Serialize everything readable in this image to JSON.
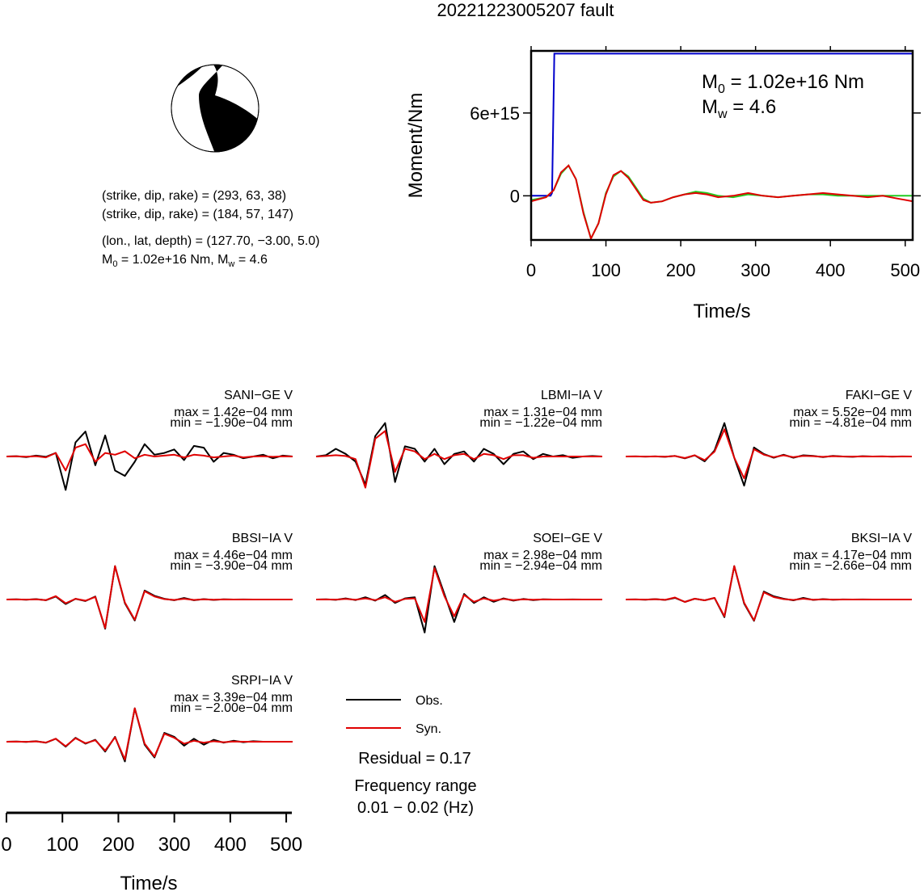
{
  "title": "20221223005207 fault",
  "beachball": {
    "planes": [
      "(strike, dip, rake) = (293, 63, 38)",
      "(strike, dip, rake) = (184, 57, 147)"
    ],
    "location": "(lon., lat, depth) = (127.70, −3.00, 5.0)",
    "moment_line": {
      "m": "M",
      "sub0": "0",
      "mid": " = 1.02e+16 Nm, M",
      "subw": "w",
      "end": " = 4.6"
    }
  },
  "moment_annotation": {
    "m0": {
      "m": "M",
      "sub": "0",
      "rest": " = 1.02e+16 Nm"
    },
    "mw": {
      "m": "M",
      "sub": "w",
      "rest": " = 4.6"
    }
  },
  "legend": {
    "obs": "Obs.",
    "syn": "Syn."
  },
  "residual": "Residual = 0.17",
  "frequency": {
    "label": "Frequency range",
    "value": "0.01 − 0.02 (Hz)"
  },
  "colors": {
    "obs": "#000000",
    "syn": "#e00000",
    "blue": "#0000cc",
    "green": "#22cc22"
  },
  "chart_data": [
    {
      "type": "line",
      "name": "moment-rate",
      "xlabel": "Time/s",
      "ylabel": "Moment/Nm",
      "xlim": [
        0,
        510
      ],
      "ylim": [
        -3200000000000000.0,
        1.05e+16
      ],
      "xticks": [
        "0",
        "100",
        "200",
        "300",
        "400",
        "500"
      ],
      "yticks": [
        "0",
        "6e+15"
      ],
      "series": [
        {
          "color": "#0000cc",
          "x": [
            0,
            26,
            28,
            31,
            33,
            35,
            510
          ],
          "y": [
            0,
            0,
            200000000000000.0,
            1.03e+16,
            1.03e+16,
            1.03e+16,
            1.03e+16
          ]
        },
        {
          "color": "#22cc22",
          "x": [
            0,
            20,
            30,
            40,
            50,
            60,
            70,
            80,
            90,
            100,
            110,
            120,
            130,
            140,
            150,
            160,
            175,
            190,
            205,
            220,
            235,
            250,
            270,
            290,
            310,
            330,
            350,
            370,
            390,
            410,
            430,
            450,
            470,
            490,
            510
          ],
          "y": [
            -300000000000000.0,
            -100000000000000.0,
            400000000000000.0,
            1600000000000000.0,
            2200000000000000.0,
            1200000000000000.0,
            -1200000000000000.0,
            -3100000000000000.0,
            -2000000000000000.0,
            200000000000000.0,
            1400000000000000.0,
            1800000000000000.0,
            1400000000000000.0,
            600000000000000.0,
            -200000000000000.0,
            -500000000000000.0,
            -400000000000000.0,
            -100000000000000.0,
            100000000000000.0,
            300000000000000.0,
            200000000000000.0,
            0,
            -100000000000000.0,
            100000000000000.0,
            0,
            -100000000000000.0,
            0,
            100000000000000.0,
            100000000000000.0,
            0,
            0,
            0,
            0,
            0,
            0
          ]
        },
        {
          "color": "#e00000",
          "x": [
            0,
            20,
            30,
            40,
            50,
            60,
            70,
            80,
            90,
            100,
            110,
            120,
            130,
            140,
            150,
            160,
            175,
            190,
            205,
            220,
            235,
            250,
            270,
            290,
            310,
            330,
            350,
            370,
            390,
            410,
            430,
            450,
            470,
            490,
            510
          ],
          "y": [
            -400000000000000.0,
            -100000000000000.0,
            400000000000000.0,
            1700000000000000.0,
            2200000000000000.0,
            1200000000000000.0,
            -1300000000000000.0,
            -3100000000000000.0,
            -2000000000000000.0,
            100000000000000.0,
            1500000000000000.0,
            1800000000000000.0,
            1300000000000000.0,
            500000000000000.0,
            -300000000000000.0,
            -500000000000000.0,
            -400000000000000.0,
            -100000000000000.0,
            100000000000000.0,
            200000000000000.0,
            100000000000000.0,
            -100000000000000.0,
            0,
            200000000000000.0,
            0,
            -100000000000000.0,
            0,
            100000000000000.0,
            200000000000000.0,
            100000000000000.0,
            0,
            -100000000000000.0,
            0,
            -200000000000000.0,
            -400000000000000.0
          ]
        }
      ]
    },
    {
      "type": "line",
      "name": "waveforms",
      "xlabel": "Time/s",
      "xlim": [
        0,
        510
      ],
      "xticks": [
        "0",
        "100",
        "200",
        "300",
        "400",
        "500"
      ],
      "legend": [
        "Obs.",
        "Syn."
      ],
      "stations": [
        {
          "name": "SANI−GE V",
          "max": "max = 1.42e−04 mm",
          "min": "min = −1.90e−04 mm",
          "obs": [
            0,
            0.02,
            -0.03,
            0.05,
            -0.02,
            0.2,
            -1.9,
            0.8,
            1.42,
            -0.5,
            1.2,
            -0.8,
            -1.1,
            -0.3,
            0.7,
            0.1,
            0.2,
            0.4,
            -0.2,
            0.6,
            0.5,
            -0.3,
            0.2,
            0.1,
            -0.1,
            0,
            0.1,
            -0.1,
            0.05,
            0
          ],
          "syn": [
            0,
            0.01,
            -0.01,
            0.02,
            -0.05,
            0.2,
            -0.8,
            0.5,
            0.7,
            -0.3,
            0.2,
            0.1,
            0.3,
            -0.1,
            0.1,
            0,
            0.05,
            0.1,
            -0.05,
            0.1,
            0.05,
            -0.05,
            0,
            0.05,
            -0.05,
            0,
            0.02,
            -0.02,
            0.01,
            0
          ]
        },
        {
          "name": "LBMI−IA V",
          "max": "max = 1.31e−04 mm",
          "min": "min = −1.22e−04 mm",
          "obs": [
            0,
            0.05,
            0.3,
            0.1,
            -0.2,
            -1.1,
            0.8,
            1.31,
            -1.0,
            0.4,
            0.3,
            -0.2,
            0.3,
            -0.3,
            0.1,
            0.2,
            -0.2,
            0.3,
            0.1,
            -0.3,
            0.1,
            0.2,
            -0.1,
            0.1,
            0,
            0.05,
            -0.05,
            0,
            0.02,
            0
          ],
          "syn": [
            0,
            0.02,
            0.05,
            0.02,
            -0.1,
            -1.22,
            0.7,
            1.0,
            -0.6,
            0.3,
            0.2,
            -0.1,
            0.1,
            -0.1,
            0.05,
            0.1,
            -0.1,
            0.1,
            0.05,
            -0.1,
            0.05,
            0.05,
            -0.05,
            0,
            0,
            0,
            0,
            0,
            0,
            0
          ]
        },
        {
          "name": "FAKI−GE V",
          "max": "max = 5.52e−04 mm",
          "min": "min = −4.81e−04 mm",
          "obs": [
            0,
            0.01,
            -0.02,
            0.02,
            -0.05,
            0.1,
            -0.3,
            0.2,
            -0.8,
            1.0,
            5.52,
            -0.2,
            -4.81,
            1.5,
            0.4,
            -0.2,
            0.3,
            -0.2,
            0.2,
            0.1,
            -0.1,
            0.1,
            0,
            -0.05,
            0.05,
            0,
            0.02,
            -0.02,
            0.01,
            0
          ],
          "syn": [
            0,
            0.01,
            -0.01,
            0.02,
            -0.04,
            0.08,
            -0.25,
            0.2,
            -0.6,
            0.8,
            4.5,
            -0.2,
            -3.6,
            1.2,
            0.3,
            -0.1,
            0.2,
            -0.1,
            0.1,
            0.05,
            -0.05,
            0.05,
            0,
            -0.02,
            0.02,
            0,
            0.01,
            -0.01,
            0,
            0
          ]
        },
        {
          "name": "BBSI−IA V",
          "max": "max = 4.46e−04 mm",
          "min": "min = −3.90e−04 mm",
          "obs": [
            0,
            0.02,
            -0.02,
            0.05,
            -0.1,
            0.4,
            -0.6,
            0.1,
            -0.2,
            0.4,
            -3.9,
            4.46,
            -0.5,
            -2.8,
            1.2,
            0.5,
            0.1,
            -0.1,
            0.2,
            -0.1,
            0.05,
            -0.05,
            0.02,
            0,
            0.01,
            0,
            0,
            0,
            0,
            0
          ],
          "syn": [
            0,
            0.01,
            -0.01,
            0.03,
            -0.08,
            0.45,
            -0.5,
            0.1,
            -0.15,
            0.35,
            -3.8,
            4.46,
            -0.4,
            -2.7,
            1.1,
            0.4,
            0.05,
            -0.05,
            0.1,
            -0.05,
            0.02,
            -0.02,
            0.01,
            0,
            0,
            0,
            0,
            0,
            0,
            0
          ]
        },
        {
          "name": "SOEI−GE V",
          "max": "max = 2.98e−04 mm",
          "min": "min = −2.94e−04 mm",
          "obs": [
            0,
            0.02,
            -0.03,
            0.1,
            -0.05,
            0.2,
            -0.1,
            0.4,
            -0.3,
            0.1,
            0.2,
            -2.94,
            2.98,
            0.5,
            -2.0,
            0.5,
            -0.3,
            0.2,
            -0.2,
            0.1,
            -0.1,
            0.05,
            -0.05,
            0.02,
            0,
            0,
            0.01,
            0,
            0,
            0
          ],
          "syn": [
            0,
            0.01,
            -0.01,
            0.05,
            -0.02,
            0.1,
            -0.05,
            0.2,
            -0.2,
            0.05,
            0.1,
            -2.0,
            2.8,
            0.3,
            -1.5,
            0.4,
            -0.2,
            0.1,
            -0.1,
            0.05,
            -0.05,
            0.02,
            -0.02,
            0.01,
            0,
            0,
            0,
            0,
            0,
            0
          ]
        },
        {
          "name": "BKSI−IA V",
          "max": "max = 4.17e−04 mm",
          "min": "min = −2.66e−04 mm",
          "obs": [
            0,
            0.01,
            -0.02,
            0.05,
            -0.05,
            0.2,
            -0.3,
            0.1,
            -0.1,
            0.2,
            -2.2,
            4.17,
            -0.5,
            -2.66,
            1.0,
            0.4,
            0.1,
            -0.1,
            0.2,
            -0.05,
            0.05,
            -0.02,
            0.01,
            0,
            0.01,
            0,
            0,
            0,
            0,
            0
          ],
          "syn": [
            0,
            0.01,
            -0.01,
            0.04,
            -0.04,
            0.25,
            -0.3,
            0.1,
            -0.1,
            0.2,
            -2.1,
            4.17,
            -0.4,
            -2.6,
            0.9,
            0.3,
            0.05,
            -0.05,
            0.1,
            -0.02,
            0.02,
            -0.01,
            0,
            0,
            0,
            0,
            0,
            0,
            0,
            0
          ]
        },
        {
          "name": "SRPI−IA V",
          "max": "max = 3.39e−04 mm",
          "min": "min = −2.00e−04 mm",
          "obs": [
            0,
            0.02,
            -0.02,
            0.05,
            -0.1,
            0.3,
            -0.5,
            0.4,
            -0.2,
            0.2,
            -1.0,
            0.5,
            -2.0,
            3.39,
            -0.3,
            -1.6,
            0.9,
            0.5,
            -0.4,
            0.3,
            -0.3,
            0.2,
            -0.1,
            0.1,
            -0.05,
            0.05,
            0,
            0,
            0,
            0
          ],
          "syn": [
            0,
            0.01,
            -0.01,
            0.03,
            -0.08,
            0.3,
            -0.45,
            0.35,
            -0.15,
            0.15,
            -0.9,
            0.45,
            -1.8,
            3.39,
            -0.2,
            -1.5,
            0.8,
            0.4,
            -0.2,
            0.1,
            -0.1,
            0.05,
            -0.05,
            0.02,
            0,
            0,
            0,
            0,
            0,
            0
          ]
        }
      ]
    }
  ]
}
